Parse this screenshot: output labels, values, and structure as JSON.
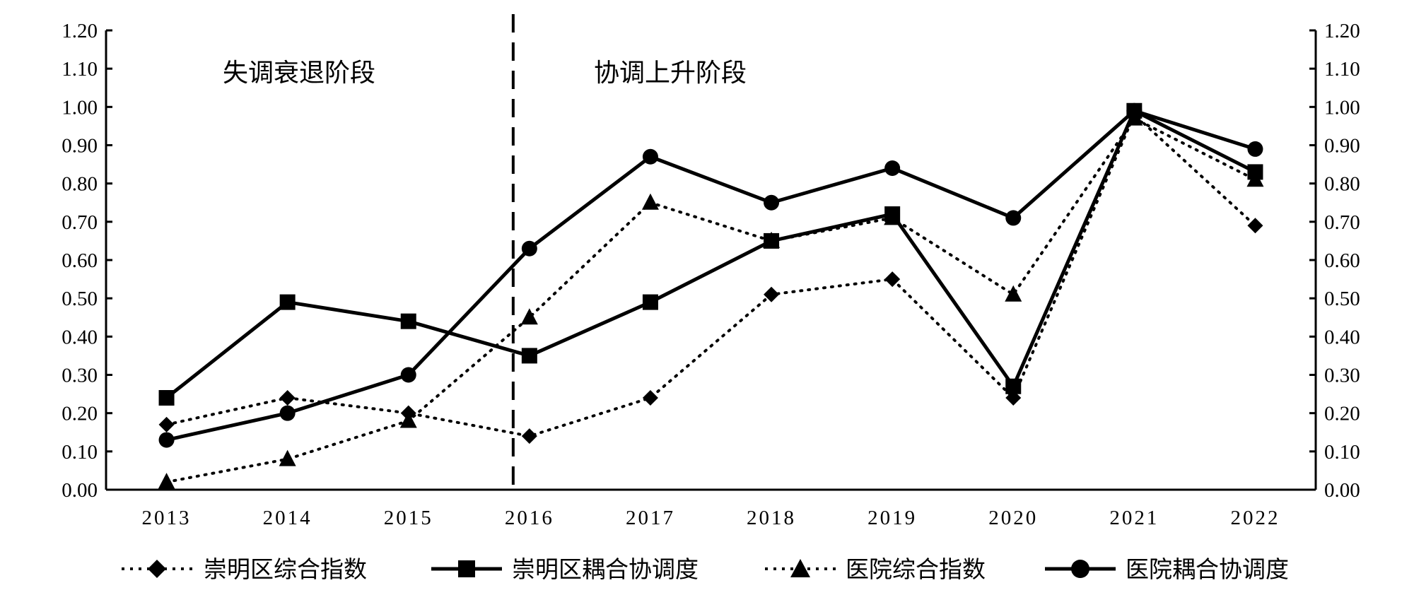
{
  "chart_data": {
    "type": "line",
    "categories": [
      "2013",
      "2014",
      "2015",
      "2016",
      "2017",
      "2018",
      "2019",
      "2020",
      "2021",
      "2022"
    ],
    "ylim": [
      0,
      1.2
    ],
    "y_ticks": [
      "0.00",
      "0.10",
      "0.20",
      "0.30",
      "0.40",
      "0.50",
      "0.60",
      "0.70",
      "0.80",
      "0.90",
      "1.00",
      "1.10",
      "1.20"
    ],
    "y2_ticks": [
      "0.00",
      "0.10",
      "0.20",
      "0.30",
      "0.40",
      "0.50",
      "0.60",
      "0.70",
      "0.80",
      "0.90",
      "1.00",
      "1.10",
      "1.20"
    ],
    "grid": false,
    "legend_position": "bottom",
    "divider_after_category": "2016",
    "annotations": [
      {
        "text": "失调衰退阶段"
      },
      {
        "text": "协调上升阶段"
      }
    ],
    "series": [
      {
        "name": "崇明区综合指数",
        "line": "dotted",
        "marker": "diamond",
        "values": [
          0.17,
          0.24,
          0.2,
          0.14,
          0.24,
          0.51,
          0.55,
          0.24,
          0.98,
          0.69
        ]
      },
      {
        "name": "崇明区耦合协调度",
        "line": "solid",
        "marker": "square",
        "values": [
          0.24,
          0.49,
          0.44,
          0.35,
          0.49,
          0.65,
          0.72,
          0.27,
          0.99,
          0.83
        ]
      },
      {
        "name": "医院综合指数",
        "line": "dotted",
        "marker": "triangle",
        "values": [
          0.02,
          0.08,
          0.18,
          0.45,
          0.75,
          0.65,
          0.71,
          0.51,
          0.97,
          0.81
        ]
      },
      {
        "name": "医院耦合协调度",
        "line": "solid",
        "marker": "circle",
        "values": [
          0.13,
          0.2,
          0.3,
          0.63,
          0.87,
          0.75,
          0.84,
          0.71,
          0.99,
          0.89
        ]
      }
    ]
  }
}
